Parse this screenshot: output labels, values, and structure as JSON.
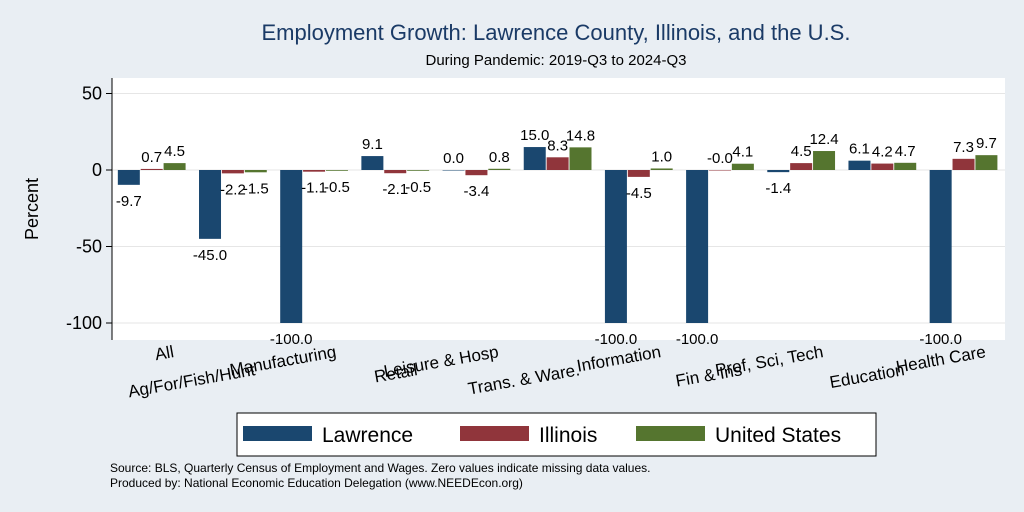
{
  "chart_data": {
    "type": "bar",
    "title": "Employment Growth: Lawrence County, Illinois, and the U.S.",
    "subtitle": "During Pandemic: 2019-Q3 to 2024-Q3",
    "ylabel": "Percent",
    "xlabel": "",
    "ylim": [
      -105,
      55
    ],
    "yticks": [
      50,
      0,
      -50,
      -100
    ],
    "grid": true,
    "legend_position": "bottom",
    "categories": [
      "All",
      "Ag/For/Fish/Hunt",
      "Manufacturing",
      "Retail",
      "Leisure & Hosp",
      "Trans. & Ware.",
      "Information",
      "Fin & Ins",
      "Prof, Sci, Tech",
      "Education",
      "Health Care"
    ],
    "series": [
      {
        "name": "Lawrence",
        "color": "#1a476f",
        "values": [
          -9.7,
          -45.0,
          -100.0,
          9.1,
          0.0,
          15.0,
          -100.0,
          -100.0,
          -1.4,
          6.1,
          -100.0
        ],
        "labels": [
          "-9.7",
          "-45.0",
          "-100.0",
          "9.1",
          "0.0",
          "15.0",
          "-100.0",
          "-100.0",
          "-1.4",
          "6.1",
          "-100.0"
        ]
      },
      {
        "name": "Illinois",
        "color": "#90353b",
        "values": [
          0.7,
          -2.2,
          -1.1,
          -2.1,
          -3.4,
          8.3,
          -4.5,
          -0.0,
          4.5,
          4.2,
          7.3
        ],
        "labels": [
          "0.7",
          "-2.2",
          "-1.1",
          "-2.1",
          "-3.4",
          "8.3",
          "-4.5",
          "-0.0",
          "4.5",
          "4.2",
          "7.3"
        ]
      },
      {
        "name": "United States",
        "color": "#55752f",
        "values": [
          4.5,
          -1.5,
          -0.5,
          -0.5,
          0.8,
          14.8,
          1.0,
          4.1,
          12.4,
          4.7,
          9.7
        ],
        "labels": [
          "4.5",
          "-1.5",
          "-0.5",
          "-0.5",
          "0.8",
          "14.8",
          "1.0",
          "4.1",
          "12.4",
          "4.7",
          "9.7"
        ]
      }
    ],
    "notes": [
      "Source: BLS, Quarterly Census of Employment and Wages. Zero values indicate missing data values.",
      "Produced by: National Economic Education Delegation (www.NEEDEcon.org)"
    ]
  }
}
